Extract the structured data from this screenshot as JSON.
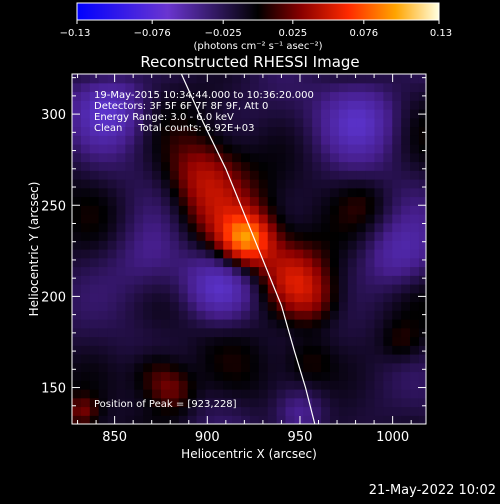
{
  "chart_data": {
    "type": "heatmap",
    "title": "Reconstructed RHESSI Image",
    "xlabel": "Heliocentric X (arcsec)",
    "ylabel": "Heliocentric Y (arcsec)",
    "xlim": [
      827,
      1018
    ],
    "ylim": [
      130,
      322
    ],
    "x_ticks": [
      850,
      900,
      950,
      1000
    ],
    "y_ticks": [
      150,
      200,
      250,
      300
    ],
    "colorbar": {
      "min": -0.13,
      "max": 0.13,
      "ticks": [
        "−0.13",
        "−0.076",
        "−0.025",
        "0.025",
        "0.076",
        "0.13"
      ],
      "tick_values": [
        -0.13,
        -0.076,
        -0.025,
        0.025,
        0.076,
        0.13
      ],
      "unit_label": "(photons cm⁻² s⁻¹ asec⁻²)"
    },
    "annotations": [
      "19-May-2015 10:34:44.000 to 10:36:20.000",
      "Detectors: 3F 5F 6F 7F 8F 9F, Att 0",
      "Energy Range: 3.0 - 6.0 keV",
      "Clean     Total counts: 6.92E+03"
    ],
    "peak_label": "Position of Peak = [923,228]",
    "peak": [
      923,
      228
    ],
    "limb_curve": [
      [
        886,
        322
      ],
      [
        898,
        295
      ],
      [
        910,
        270
      ],
      [
        920,
        245
      ],
      [
        930,
        220
      ],
      [
        940,
        195
      ],
      [
        947,
        170
      ],
      [
        953,
        150
      ],
      [
        958,
        130
      ]
    ],
    "sources": [
      {
        "x": 921,
        "y": 231,
        "amp": 0.095,
        "sigma": 10
      },
      {
        "x": 904,
        "y": 245,
        "amp": 0.04,
        "sigma": 16
      },
      {
        "x": 944,
        "y": 212,
        "amp": 0.05,
        "sigma": 13
      },
      {
        "x": 896,
        "y": 268,
        "amp": 0.035,
        "sigma": 13
      },
      {
        "x": 956,
        "y": 198,
        "amp": 0.032,
        "sigma": 11
      },
      {
        "x": 872,
        "y": 158,
        "amp": 0.03,
        "sigma": 10
      },
      {
        "x": 882,
        "y": 148,
        "amp": 0.032,
        "sigma": 9
      },
      {
        "x": 955,
        "y": 165,
        "amp": 0.022,
        "sigma": 10
      },
      {
        "x": 833,
        "y": 137,
        "amp": 0.028,
        "sigma": 6
      },
      {
        "x": 1005,
        "y": 175,
        "amp": 0.02,
        "sigma": 8
      },
      {
        "x": 985,
        "y": 252,
        "amp": 0.014,
        "sigma": 10
      },
      {
        "x": 848,
        "y": 305,
        "amp": -0.05,
        "sigma": 14
      },
      {
        "x": 905,
        "y": 205,
        "amp": -0.045,
        "sigma": 14
      },
      {
        "x": 983,
        "y": 300,
        "amp": -0.045,
        "sigma": 16
      },
      {
        "x": 1003,
        "y": 222,
        "amp": -0.04,
        "sigma": 14
      },
      {
        "x": 868,
        "y": 220,
        "amp": -0.032,
        "sigma": 16
      },
      {
        "x": 950,
        "y": 135,
        "amp": -0.038,
        "sigma": 10
      }
    ]
  },
  "footer": {
    "timestamp": "21-May-2022 10:02"
  }
}
